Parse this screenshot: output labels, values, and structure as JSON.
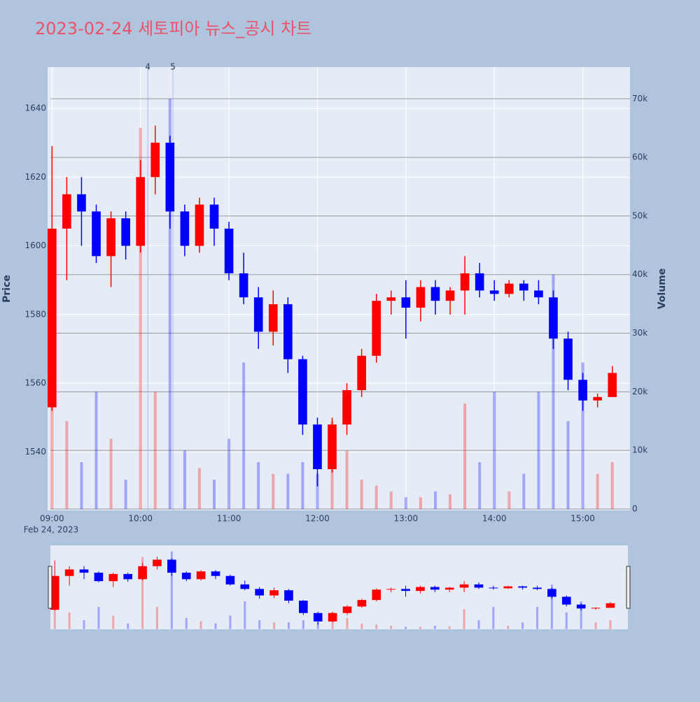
{
  "chart_data": {
    "type": "candlestick",
    "title": "2023-02-24 세토피아 뉴스_공시 차트",
    "ylabel": "Price",
    "y2label": "Volume",
    "x_date_label": "Feb 24, 2023",
    "x": [
      "09:00",
      "09:10",
      "09:20",
      "09:30",
      "09:40",
      "09:50",
      "10:00",
      "10:10",
      "10:20",
      "10:30",
      "10:40",
      "10:50",
      "11:00",
      "11:10",
      "11:20",
      "11:30",
      "11:40",
      "11:50",
      "12:00",
      "12:10",
      "12:20",
      "12:30",
      "12:40",
      "12:50",
      "13:00",
      "13:10",
      "13:20",
      "13:30",
      "13:40",
      "13:50",
      "14:00",
      "14:10",
      "14:20",
      "14:30",
      "14:40",
      "14:50",
      "15:00",
      "15:10",
      "15:20"
    ],
    "open": [
      1553,
      1605,
      1615,
      1610,
      1597,
      1608,
      1600,
      1620,
      1630,
      1610,
      1600,
      1612,
      1605,
      1592,
      1585,
      1575,
      1583,
      1567,
      1548,
      1535,
      1548,
      1558,
      1568,
      1584,
      1585,
      1582,
      1588,
      1584,
      1587,
      1592,
      1587,
      1586,
      1589,
      1587,
      1585,
      1573,
      1561,
      1555,
      1556
    ],
    "high": [
      1629,
      1620,
      1620,
      1612,
      1610,
      1610,
      1625,
      1635,
      1632,
      1612,
      1614,
      1614,
      1607,
      1598,
      1588,
      1587,
      1585,
      1568,
      1550,
      1550,
      1560,
      1570,
      1586,
      1587,
      1590,
      1590,
      1590,
      1588,
      1597,
      1595,
      1590,
      1590,
      1590,
      1590,
      1587,
      1575,
      1563,
      1557,
      1565
    ],
    "low": [
      1552,
      1590,
      1600,
      1595,
      1588,
      1596,
      1598,
      1615,
      1605,
      1597,
      1598,
      1600,
      1590,
      1583,
      1570,
      1571,
      1563,
      1545,
      1530,
      1534,
      1545,
      1556,
      1566,
      1580,
      1573,
      1578,
      1580,
      1580,
      1580,
      1585,
      1584,
      1585,
      1584,
      1583,
      1570,
      1558,
      1552,
      1553,
      1556
    ],
    "close": [
      1605,
      1615,
      1610,
      1597,
      1608,
      1600,
      1620,
      1630,
      1610,
      1600,
      1612,
      1605,
      1592,
      1585,
      1575,
      1583,
      1567,
      1548,
      1535,
      1548,
      1558,
      1568,
      1584,
      1585,
      1582,
      1588,
      1584,
      1587,
      1592,
      1587,
      1586,
      1589,
      1587,
      1585,
      1573,
      1561,
      1555,
      1556,
      1563
    ],
    "volume": [
      30000,
      15000,
      8000,
      20000,
      12000,
      5000,
      65000,
      20000,
      70000,
      10000,
      7000,
      5000,
      12000,
      25000,
      8000,
      6000,
      6000,
      8000,
      6000,
      15000,
      10000,
      5000,
      4000,
      3000,
      2000,
      2000,
      3000,
      2500,
      18000,
      8000,
      20000,
      3000,
      6000,
      20000,
      40000,
      15000,
      25000,
      6000,
      8000
    ],
    "increasing_color": "#ff0000",
    "decreasing_color": "#0000ff",
    "annotations": [
      {
        "x": "10:05",
        "text": "4"
      },
      {
        "x": "10:22",
        "text": "5"
      }
    ],
    "xlim": [
      "08:57",
      "15:32"
    ],
    "xticks": [
      "09:00",
      "10:00",
      "11:00",
      "12:00",
      "13:00",
      "14:00",
      "15:00"
    ],
    "ylim": [
      1523,
      1652
    ],
    "yticks": [
      1540,
      1560,
      1580,
      1600,
      1620,
      1640
    ],
    "y2lim": [
      -240,
      75400
    ],
    "y2ticks": [
      0,
      {
        "value": 10000,
        "label": "10k"
      },
      {
        "value": 20000,
        "label": "20k"
      },
      {
        "value": 30000,
        "label": "30k"
      },
      {
        "value": 40000,
        "label": "40k"
      },
      {
        "value": 50000,
        "label": "50k"
      },
      {
        "value": 60000,
        "label": "60k"
      },
      {
        "value": 70000,
        "label": "70k"
      }
    ],
    "rangeslider": true
  }
}
